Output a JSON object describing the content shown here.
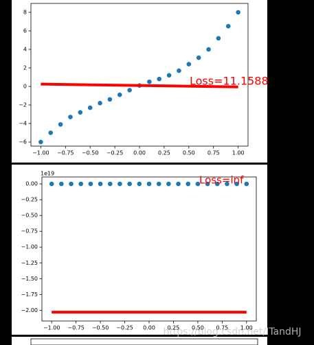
{
  "chart_data": [
    {
      "type": "scatter",
      "scatter": {
        "color": "#1f77b4",
        "x": [
          -1,
          -0.9,
          -0.8,
          -0.7,
          -0.6,
          -0.5,
          -0.4,
          -0.3,
          -0.2,
          -0.1,
          0,
          0.1,
          0.2,
          0.3,
          0.4,
          0.5,
          0.6,
          0.7,
          0.8,
          0.9,
          1
        ],
        "y": [
          -6,
          -5,
          -4.1,
          -3.3,
          -2.8,
          -2.3,
          -1.8,
          -1.4,
          -0.9,
          -0.4,
          0.1,
          0.5,
          0.8,
          1.2,
          1.7,
          2.4,
          3.1,
          4.0,
          5.2,
          6.5,
          8
        ]
      },
      "line": {
        "color": "#ff0000",
        "x": [
          -1,
          1
        ],
        "y": [
          0.25,
          -0.05
        ]
      },
      "annotation": {
        "text": "Loss=11.1588",
        "color": "#ff0000"
      },
      "xlim": [
        -1.1,
        1.1
      ],
      "ylim": [
        -6.44,
        8.96
      ],
      "xticks": [
        {
          "value": -1,
          "label": "−1.00"
        },
        {
          "value": -0.75,
          "label": "−0.75"
        },
        {
          "value": -0.5,
          "label": "−0.50"
        },
        {
          "value": -0.25,
          "label": "−0.25"
        },
        {
          "value": 0,
          "label": "0.00"
        },
        {
          "value": 0.25,
          "label": "0.25"
        },
        {
          "value": 0.5,
          "label": "0.50"
        },
        {
          "value": 0.75,
          "label": "0.75"
        },
        {
          "value": 1,
          "label": "1.00"
        }
      ],
      "yticks": [
        {
          "value": -6,
          "label": "−6"
        },
        {
          "value": -4,
          "label": "−4"
        },
        {
          "value": -2,
          "label": "−2"
        },
        0,
        2,
        4,
        6,
        8
      ]
    },
    {
      "type": "scatter",
      "offset_label": "1e19",
      "scatter": {
        "color": "#1f77b4",
        "x": [
          -1,
          -0.9,
          -0.8,
          -0.7,
          -0.6,
          -0.5,
          -0.4,
          -0.3,
          -0.2,
          -0.1,
          0,
          0.1,
          0.2,
          0.3,
          0.4,
          0.5,
          0.6,
          0.7,
          0.8,
          0.9,
          1
        ],
        "y": [
          0,
          0,
          0,
          0,
          0,
          0,
          0,
          0,
          0,
          0,
          0,
          0,
          0,
          0,
          0,
          0,
          0,
          0,
          0,
          0,
          0
        ]
      },
      "line": {
        "color": "#ff0000",
        "x": [
          -1,
          1
        ],
        "y": [
          -2.03,
          -2.03
        ]
      },
      "annotation": {
        "text": "Loss=inf",
        "color": "#ff0000"
      },
      "xlim": [
        -1.1,
        1.1
      ],
      "ylim": [
        -2.17,
        0.11
      ],
      "xticks": [
        {
          "value": -1,
          "label": "−1.00"
        },
        {
          "value": -0.75,
          "label": "−0.75"
        },
        {
          "value": -0.5,
          "label": "−0.50"
        },
        {
          "value": -0.25,
          "label": "−0.25"
        },
        {
          "value": 0,
          "label": "0.00"
        },
        {
          "value": 0.25,
          "label": "0.25"
        },
        {
          "value": 0.5,
          "label": "0.50"
        },
        {
          "value": 0.75,
          "label": "0.75"
        },
        {
          "value": 1,
          "label": "1.00"
        }
      ],
      "yticks": [
        {
          "value": 0,
          "label": "0.00"
        },
        {
          "value": -0.25,
          "label": "−0.25"
        },
        {
          "value": -0.5,
          "label": "−0.50"
        },
        {
          "value": -0.75,
          "label": "−0.75"
        },
        {
          "value": -1,
          "label": "−1.00"
        },
        {
          "value": -1.25,
          "label": "−1.25"
        },
        {
          "value": -1.5,
          "label": "−1.50"
        },
        {
          "value": -1.75,
          "label": "−1.75"
        },
        {
          "value": -2,
          "label": "−2.00"
        }
      ]
    }
  ],
  "watermark": "https://blog.csdn.net/ITandHJ"
}
